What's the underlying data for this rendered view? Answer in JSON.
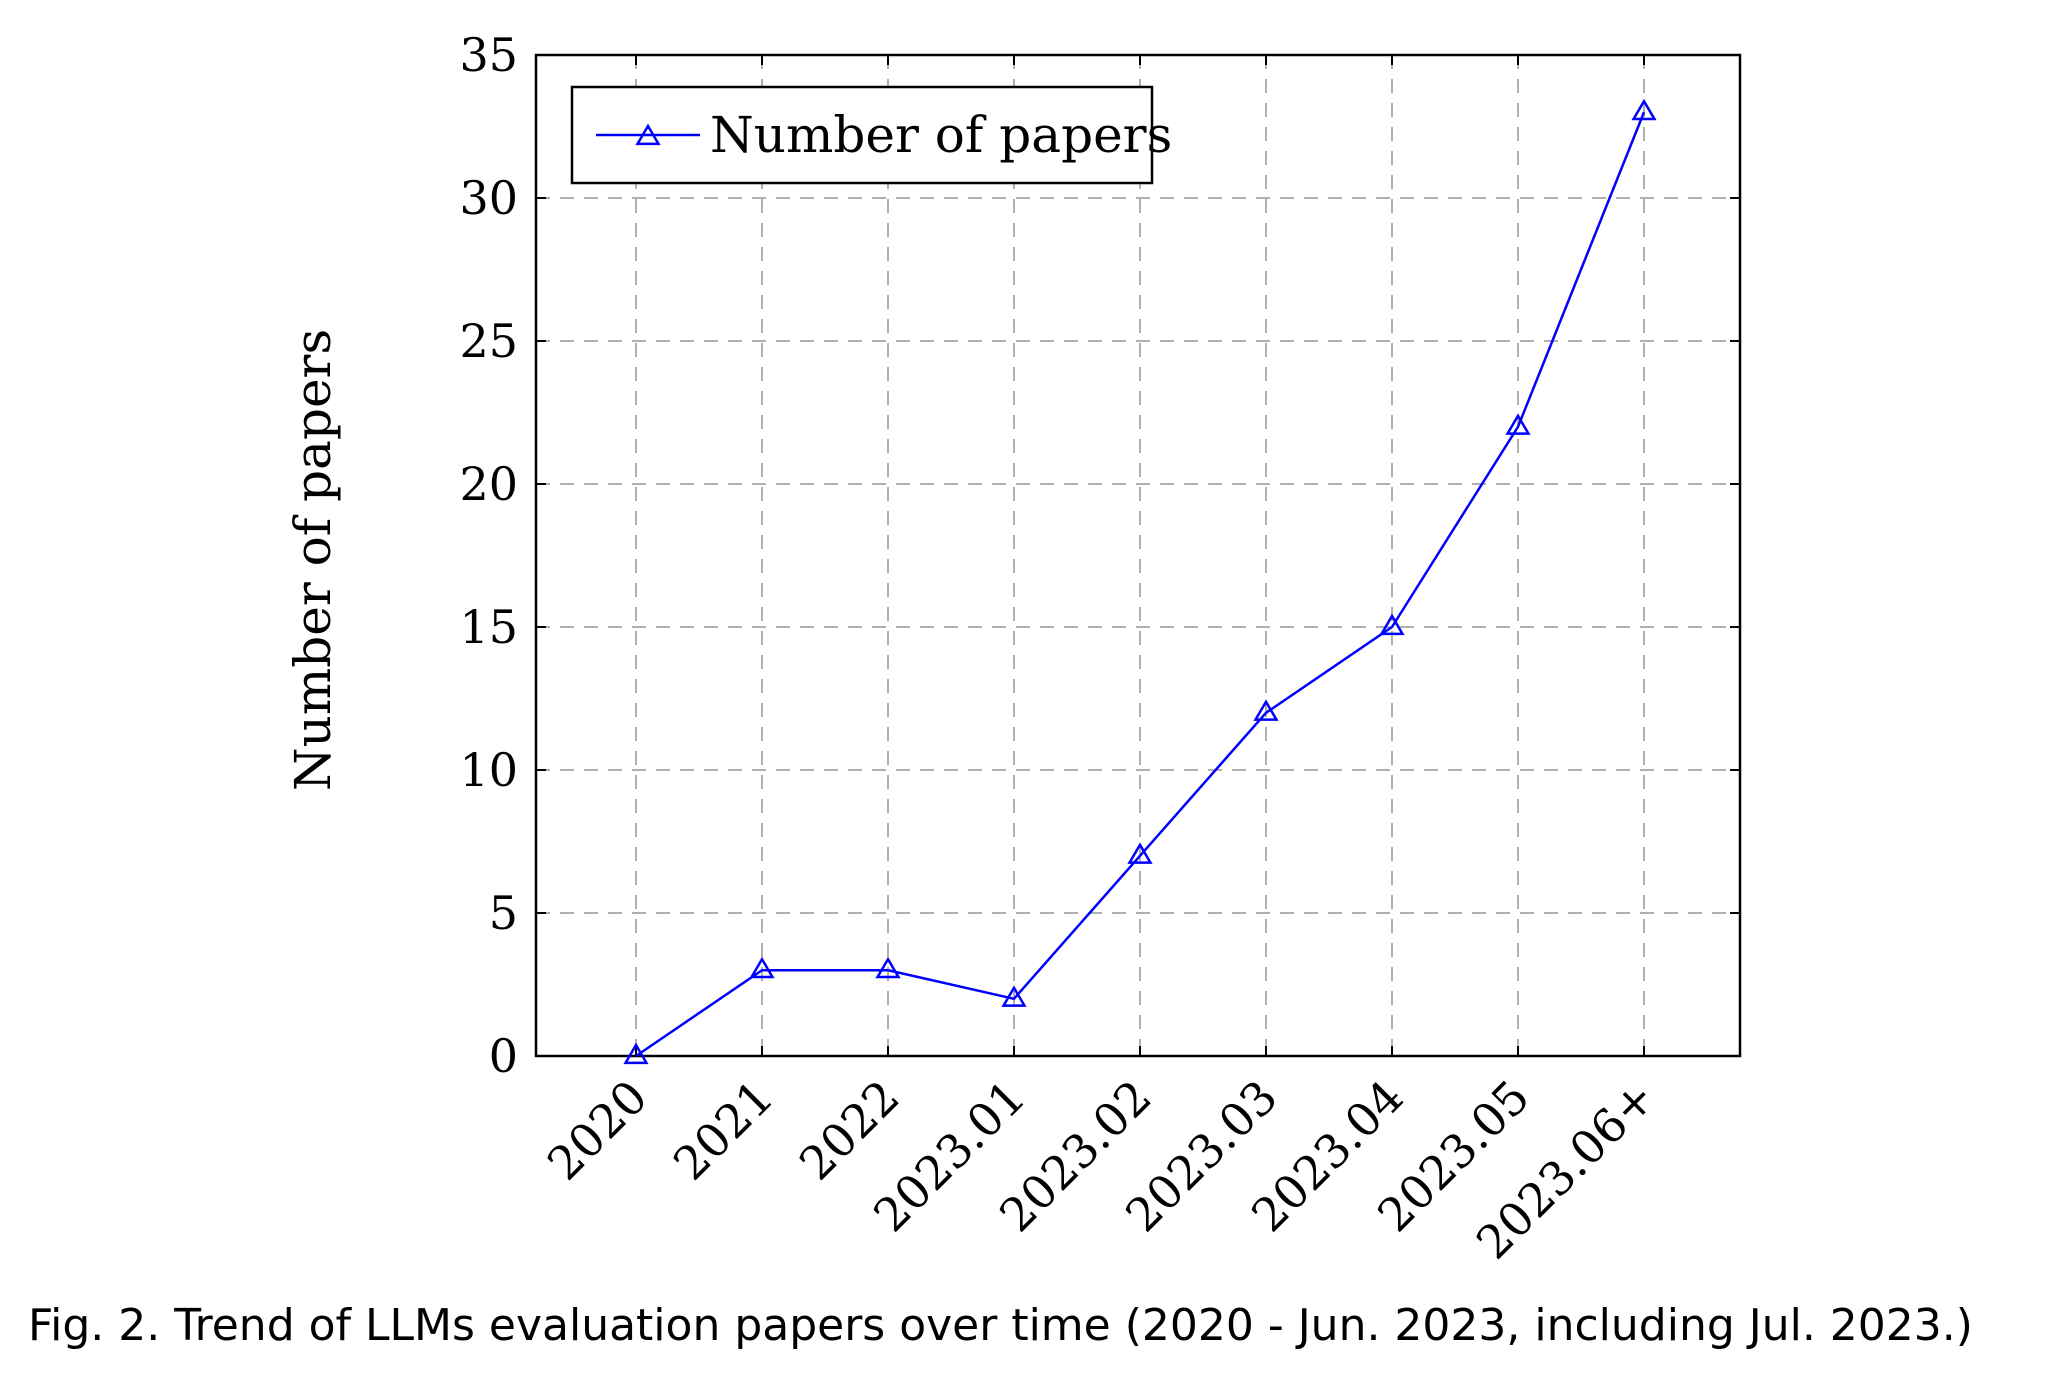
{
  "chart_data": {
    "type": "line",
    "title": "",
    "xlabel": "",
    "ylabel": "Number of papers",
    "categories": [
      "2020",
      "2021",
      "2022",
      "2023.01",
      "2023.02",
      "2023.03",
      "2023.04",
      "2023.05",
      "2023.06+"
    ],
    "series": [
      {
        "name": "Number of papers",
        "values": [
          0,
          3,
          3,
          2,
          7,
          12,
          15,
          22,
          33
        ],
        "color": "#0000ff",
        "marker": "triangle"
      }
    ],
    "ylim": [
      0,
      35
    ],
    "yticks": [
      0,
      5,
      10,
      15,
      20,
      25,
      30,
      35
    ],
    "grid": true,
    "legend_position": "top-left"
  },
  "caption": "Fig. 2.  Trend of LLMs evaluation papers over time (2020 - Jun. 2023, including Jul. 2023.)"
}
